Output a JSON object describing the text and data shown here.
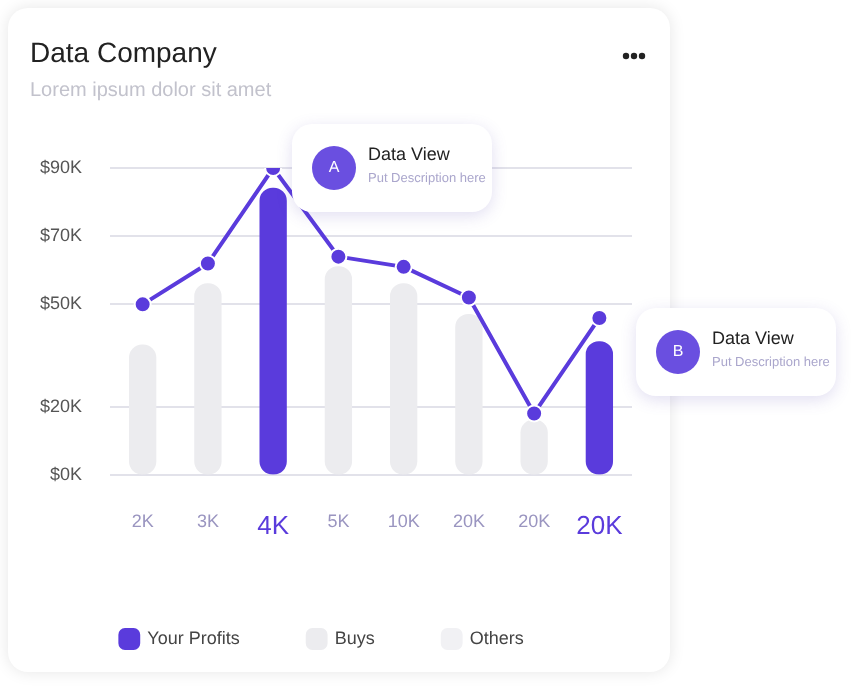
{
  "chart_data": {
    "type": "bar",
    "title": "Data Company",
    "subtitle": "Lorem ipsum dolor sit amet",
    "categories": [
      "2K",
      "3K",
      "4K",
      "5K",
      "10K",
      "20K",
      "20K",
      "20K"
    ],
    "series": [
      {
        "name": "Your Profits",
        "color": "#5a3bdc",
        "values": [
          null,
          null,
          84,
          null,
          null,
          null,
          null,
          39
        ]
      },
      {
        "name": "Buys",
        "color": "#ececef",
        "values": [
          38,
          56,
          null,
          61,
          56,
          47,
          16,
          null
        ]
      },
      {
        "name": "Others",
        "color": "#f1f1f4",
        "values": [
          null,
          null,
          null,
          null,
          null,
          null,
          null,
          null
        ]
      },
      {
        "type": "line",
        "color": "#5a3bdc",
        "values": [
          50,
          62,
          90,
          64,
          61,
          52,
          18,
          46
        ]
      }
    ],
    "ylim": [
      0,
      90
    ],
    "yticks": [
      {
        "value": 0,
        "label": "$0K"
      },
      {
        "value": 20,
        "label": "$20K"
      },
      {
        "value": 50,
        "label": "$50K"
      },
      {
        "value": 70,
        "label": "$70K"
      },
      {
        "value": 90,
        "label": "$90K"
      }
    ],
    "grid": "y",
    "legend": "bottom",
    "marker": "circle",
    "line_style": "solid",
    "annotations": [
      "A",
      "Data View",
      "Put Description here",
      "B",
      "Data View",
      "Put Description here"
    ]
  }
}
